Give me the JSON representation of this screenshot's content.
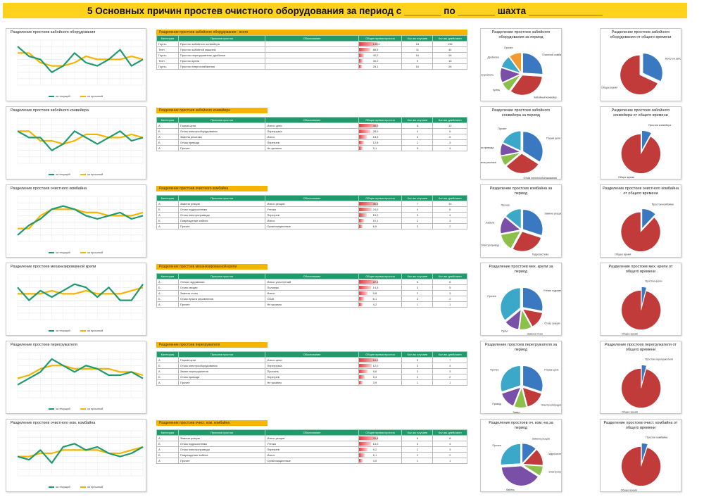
{
  "header": {
    "title": "5 Основных причин простев очистного оборудования за период с _______ по _______ шахта ______________"
  },
  "colors": {
    "banner": "#ffd21c",
    "table_caption": "#f5b400",
    "table_header": "#1f9a6c",
    "line_current": "#1f9a6c",
    "line_last": "#f5b400",
    "pie_blue": "#3a78c2",
    "pie_red": "#c23b3b",
    "pie_green": "#8cc04a",
    "pie_purple": "#7a4fa8",
    "pie_cyan": "#3ba7c9",
    "pie_orange": "#f29a2e"
  },
  "table_columns": [
    "Категория",
    "Причина простоя",
    "Обоснование",
    "Общее время простоя",
    "Кол-во случаев",
    "Кол-во дней/смен"
  ],
  "legend": {
    "current": "за текущий",
    "last": "за прошлый"
  },
  "rows": [
    {
      "line_title": "Разделение простоев забойного оборудования",
      "table_caption": "Разделение простоев забойного оборудования - всего",
      "pie1_title": "Разделение простоев забойного оборудования за период",
      "pie2_title": "Разделение простоев забойного оборудования от общего времени",
      "line_current": [
        6,
        4.5,
        4,
        2,
        3,
        5,
        3.5,
        3,
        4,
        5.5,
        3,
        4
      ],
      "line_last": [
        5,
        5,
        3.5,
        3,
        3,
        3.5,
        4.5,
        4,
        4,
        4,
        4.5,
        4
      ],
      "table": [
        {
          "cat": "Горно-",
          "cause": "Простои забойного конвейера",
          "reason": "",
          "time": "145,0",
          "count": "18",
          "days": "136",
          "bar": 1.0
        },
        {
          "cat": "Техн.",
          "cause": "Простои забойной машины",
          "reason": "",
          "time": "88,5",
          "count": "11",
          "days": "44",
          "bar": 0.61
        },
        {
          "cat": "Горно-",
          "cause": "Простои перегружателя/ дробилки",
          "reason": "",
          "time": "40,2",
          "count": "16",
          "days": "26",
          "bar": 0.28
        },
        {
          "cat": "Техн.",
          "cause": "Простои крепи",
          "reason": "",
          "time": "30,2",
          "count": "9",
          "days": "15",
          "bar": 0.21
        },
        {
          "cat": "Горно-",
          "cause": "Простои энергоснабжения",
          "reason": "",
          "time": "25,1",
          "count": "16",
          "days": "26",
          "bar": 0.17
        }
      ],
      "pie1": [
        {
          "label": "Очистной комбайн",
          "value": 26,
          "color": "#3a78c2"
        },
        {
          "label": "Забойный конвейер",
          "value": 34,
          "color": "#c23b3b"
        },
        {
          "label": "Крепь",
          "value": 8,
          "color": "#8cc04a"
        },
        {
          "label": "Перегружатель",
          "value": 12,
          "color": "#7a4fa8"
        },
        {
          "label": "Дробилка",
          "value": 10,
          "color": "#3ba7c9"
        },
        {
          "label": "Прочее",
          "value": 10,
          "color": "#f29a2e"
        }
      ],
      "pie2": [
        {
          "label": "Простои забойного оборудования",
          "value": 32,
          "color": "#3a78c2"
        },
        {
          "label": "Общее время",
          "value": 68,
          "color": "#c23b3b"
        }
      ]
    },
    {
      "line_title": "Разделение простоев забойного конвейера",
      "table_caption": "Разделение простоев забойного конвейера",
      "pie1_title": "Разделение простоев забойного конвейера за период",
      "pie2_title": "Разделение простоев забойного конвейера от общего времени",
      "line_current": [
        5,
        4,
        4,
        2,
        3,
        5,
        4,
        3,
        4,
        5,
        3.5,
        4
      ],
      "line_last": [
        5,
        5,
        3.5,
        3.5,
        3,
        3.5,
        4.5,
        4.5,
        4,
        4,
        4.5,
        4
      ],
      "table": [
        {
          "cat": "А",
          "cause": "Порыв цепи",
          "reason": "Износ цепи",
          "time": "46,0",
          "count": "8",
          "days": "12",
          "bar": 1.0
        },
        {
          "cat": "Б",
          "cause": "Отказ электрооборудования",
          "reason": "Перегрузка",
          "time": "28,0",
          "count": "4",
          "days": "6",
          "bar": 0.61
        },
        {
          "cat": "А",
          "cause": "Замена рештака",
          "reason": "Износ",
          "time": "18,3",
          "count": "3",
          "days": "5",
          "bar": 0.4
        },
        {
          "cat": "Б",
          "cause": "Отказ привода",
          "reason": "Перегрев",
          "time": "12,5",
          "count": "2",
          "days": "3",
          "bar": 0.27
        },
        {
          "cat": "А",
          "cause": "Прочее",
          "reason": "Не указано",
          "time": "9,1",
          "count": "5",
          "days": "4",
          "bar": 0.2
        }
      ],
      "pie1": [
        {
          "label": "Порыв цепи",
          "value": 34,
          "color": "#3a78c2"
        },
        {
          "label": "Отказ электрооборудования",
          "value": 30,
          "color": "#c23b3b"
        },
        {
          "label": "Замена рештака",
          "value": 8,
          "color": "#8cc04a"
        },
        {
          "label": "Отказ привода",
          "value": 10,
          "color": "#7a4fa8"
        },
        {
          "label": "Прочее",
          "value": 18,
          "color": "#3ba7c9"
        }
      ],
      "pie2": [
        {
          "label": "Простои конвейера",
          "value": 8,
          "color": "#3a78c2"
        },
        {
          "label": "Общее время",
          "value": 92,
          "color": "#c23b3b"
        }
      ]
    },
    {
      "line_title": "Разделение простоев очистного комбайна",
      "table_caption": "Разделение простоев очистного комбайна",
      "pie1_title": "Разделение простоев комбайна за период",
      "pie2_title": "Разделение простоев очистного комбайна от общего времени",
      "line_current": [
        1,
        2.5,
        3.5,
        5,
        5.5,
        5,
        4,
        3.5,
        4,
        4.5,
        3.5,
        4
      ],
      "line_last": [
        2,
        2,
        4,
        5,
        5,
        5,
        4.5,
        4.5,
        4,
        4,
        4,
        4.5
      ],
      "table": [
        {
          "cat": "А",
          "cause": "Замена резцов",
          "reason": "Износ резцов",
          "time": "36,4",
          "count": "7",
          "days": "10",
          "bar": 1.0
        },
        {
          "cat": "Б",
          "cause": "Отказ гидросистемы",
          "reason": "Утечка",
          "time": "24,0",
          "count": "4",
          "days": "6",
          "bar": 0.66
        },
        {
          "cat": "А",
          "cause": "Отказ электропривода",
          "reason": "Перегрев",
          "time": "15,2",
          "count": "3",
          "days": "4",
          "bar": 0.42
        },
        {
          "cat": "Б",
          "cause": "Повреждение кабеля",
          "reason": "Износ",
          "time": "10,1",
          "count": "2",
          "days": "3",
          "bar": 0.28
        },
        {
          "cat": "А",
          "cause": "Прочее",
          "reason": "Организационные",
          "time": "6,5",
          "count": "3",
          "days": "2",
          "bar": 0.18
        }
      ],
      "pie1": [
        {
          "label": "Замена резцов",
          "value": 30,
          "color": "#3a78c2"
        },
        {
          "label": "Гидросистема",
          "value": 28,
          "color": "#c23b3b"
        },
        {
          "label": "Электропривод",
          "value": 14,
          "color": "#8cc04a"
        },
        {
          "label": "Кабель",
          "value": 14,
          "color": "#7a4fa8"
        },
        {
          "label": "Прочее",
          "value": 14,
          "color": "#3ba7c9"
        }
      ],
      "pie2": [
        {
          "label": "Простои комбайна",
          "value": 12,
          "color": "#3a78c2"
        },
        {
          "label": "Общее время",
          "value": 88,
          "color": "#c23b3b"
        }
      ]
    },
    {
      "line_title": "Разделение простоев механизированной крепи",
      "table_caption": "Разделение простоев механизированной крепи",
      "pie1_title": "Разделение простоев мех. крепи за период",
      "pie2_title": "Разделение простоев мех. крепи от общего времени",
      "line_current": [
        5,
        3,
        4.5,
        3.5,
        4.5,
        5.5,
        5,
        3.5,
        5,
        3,
        3,
        5.5
      ],
      "line_last": [
        4,
        4,
        4,
        4.5,
        4,
        4,
        4.5,
        4,
        4,
        4,
        4.5,
        5
      ],
      "table": [
        {
          "cat": "А",
          "cause": "Утечки гидравлики",
          "reason": "Износ уплотнений",
          "time": "22,4",
          "count": "6",
          "days": "8",
          "bar": 1.0
        },
        {
          "cat": "Б",
          "cause": "Отказ секции",
          "reason": "Поломка",
          "time": "14,3",
          "count": "3",
          "days": "5",
          "bar": 0.64
        },
        {
          "cat": "А",
          "cause": "Замена стоек",
          "reason": "Износ",
          "time": "9,8",
          "count": "2",
          "days": "3",
          "bar": 0.44
        },
        {
          "cat": "Б",
          "cause": "Отказ пульта управления",
          "reason": "Сбой",
          "time": "6,1",
          "count": "2",
          "days": "2",
          "bar": 0.27
        },
        {
          "cat": "А",
          "cause": "Прочее",
          "reason": "Не указано",
          "time": "4,2",
          "count": "1",
          "days": "1",
          "bar": 0.19
        }
      ],
      "pie1": [
        {
          "label": "Утечки гидравлики",
          "value": 28,
          "color": "#3a78c2"
        },
        {
          "label": "Отказ секции",
          "value": 14,
          "color": "#c23b3b"
        },
        {
          "label": "Замена стоек",
          "value": 10,
          "color": "#8cc04a"
        },
        {
          "label": "Пульт",
          "value": 12,
          "color": "#7a4fa8"
        },
        {
          "label": "Прочее",
          "value": 36,
          "color": "#3ba7c9"
        }
      ],
      "pie2": [
        {
          "label": "Простои крепи",
          "value": 4,
          "color": "#3a78c2"
        },
        {
          "label": "Общее время",
          "value": 96,
          "color": "#c23b3b"
        }
      ]
    },
    {
      "line_title": "Разделение простоев перегружателя",
      "table_caption": "Разделение простоев перегружателя",
      "pie1_title": "Разделение простоев перегружателя за период",
      "pie2_title": "Разделение простоев перегружателя от общего времени",
      "line_current": [
        2,
        3,
        4,
        6,
        5,
        4,
        5,
        4.5,
        3.5,
        3.5,
        4,
        3
      ],
      "line_last": [
        3,
        3.5,
        4.5,
        5,
        5,
        4.5,
        4.5,
        4.5,
        4.5,
        4,
        4,
        3.5
      ],
      "table": [
        {
          "cat": "А",
          "cause": "Порыв цепи",
          "reason": "Износ цепи",
          "time": "18,2",
          "count": "5",
          "days": "7",
          "bar": 1.0
        },
        {
          "cat": "Б",
          "cause": "Отказ электрооборудования",
          "reason": "Перегрузка",
          "time": "12,0",
          "count": "3",
          "days": "4",
          "bar": 0.66
        },
        {
          "cat": "А",
          "cause": "Завал перегружателя",
          "reason": "Просыпь",
          "time": "8,6",
          "count": "3",
          "days": "3",
          "bar": 0.47
        },
        {
          "cat": "Б",
          "cause": "Отказ привода",
          "reason": "Перегрев",
          "time": "5,4",
          "count": "2",
          "days": "2",
          "bar": 0.3
        },
        {
          "cat": "А",
          "cause": "Прочее",
          "reason": "Не указано",
          "time": "3,9",
          "count": "1",
          "days": "1",
          "bar": 0.21
        }
      ],
      "pie1": [
        {
          "label": "Порыв цепи",
          "value": 30,
          "color": "#3a78c2"
        },
        {
          "label": "Электрооборудование",
          "value": 16,
          "color": "#c23b3b"
        },
        {
          "label": "Завал",
          "value": 10,
          "color": "#8cc04a"
        },
        {
          "label": "Привод",
          "value": 14,
          "color": "#7a4fa8"
        },
        {
          "label": "Прочее",
          "value": 30,
          "color": "#3ba7c9"
        }
      ],
      "pie2": [
        {
          "label": "Простои перегружателя",
          "value": 4,
          "color": "#3a78c2"
        },
        {
          "label": "Общее время",
          "value": 96,
          "color": "#c23b3b"
        }
      ]
    },
    {
      "line_title": "Разделение простоев очистного ком. комбайна",
      "table_caption": "Разделение простоев очист. ком. комбайна",
      "pie1_title": "Разделение простоев оч. ком.-на за период",
      "pie2_title": "Разделение простоев очист. комбайна от общего времени",
      "line_current": [
        3,
        2.5,
        4,
        2,
        4.5,
        5,
        4,
        4.5,
        3.5,
        3,
        3.5,
        4.5
      ],
      "line_last": [
        3,
        3,
        3.5,
        3.5,
        4,
        4,
        4,
        4,
        3.5,
        3.5,
        4,
        4.5
      ],
      "table": [
        {
          "cat": "А",
          "cause": "Замена резцов",
          "reason": "Износ резцов",
          "time": "20,4",
          "count": "6",
          "days": "8",
          "bar": 1.0
        },
        {
          "cat": "Б",
          "cause": "Отказ гидросистемы",
          "reason": "Утечка",
          "time": "13,0",
          "count": "3",
          "days": "4",
          "bar": 0.64
        },
        {
          "cat": "А",
          "cause": "Отказ электропривода",
          "reason": "Перегрев",
          "time": "9,2",
          "count": "2",
          "days": "3",
          "bar": 0.45
        },
        {
          "cat": "Б",
          "cause": "Повреждение кабеля",
          "reason": "Износ",
          "time": "6,1",
          "count": "2",
          "days": "2",
          "bar": 0.3
        },
        {
          "cat": "А",
          "cause": "Прочее",
          "reason": "Организационные",
          "time": "4,0",
          "count": "1",
          "days": "1",
          "bar": 0.2
        }
      ],
      "pie1": [
        {
          "label": "Замена резцов",
          "value": 12,
          "color": "#3a78c2"
        },
        {
          "label": "Гидросистема",
          "value": 14,
          "color": "#c23b3b"
        },
        {
          "label": "Электропривод",
          "value": 8,
          "color": "#8cc04a"
        },
        {
          "label": "Кабель",
          "value": 40,
          "color": "#7a4fa8"
        },
        {
          "label": "Прочее",
          "value": 26,
          "color": "#3ba7c9"
        }
      ],
      "pie2": [
        {
          "label": "Простои комбайна",
          "value": 5,
          "color": "#3a78c2"
        },
        {
          "label": "Общее время",
          "value": 95,
          "color": "#c23b3b"
        }
      ]
    }
  ]
}
